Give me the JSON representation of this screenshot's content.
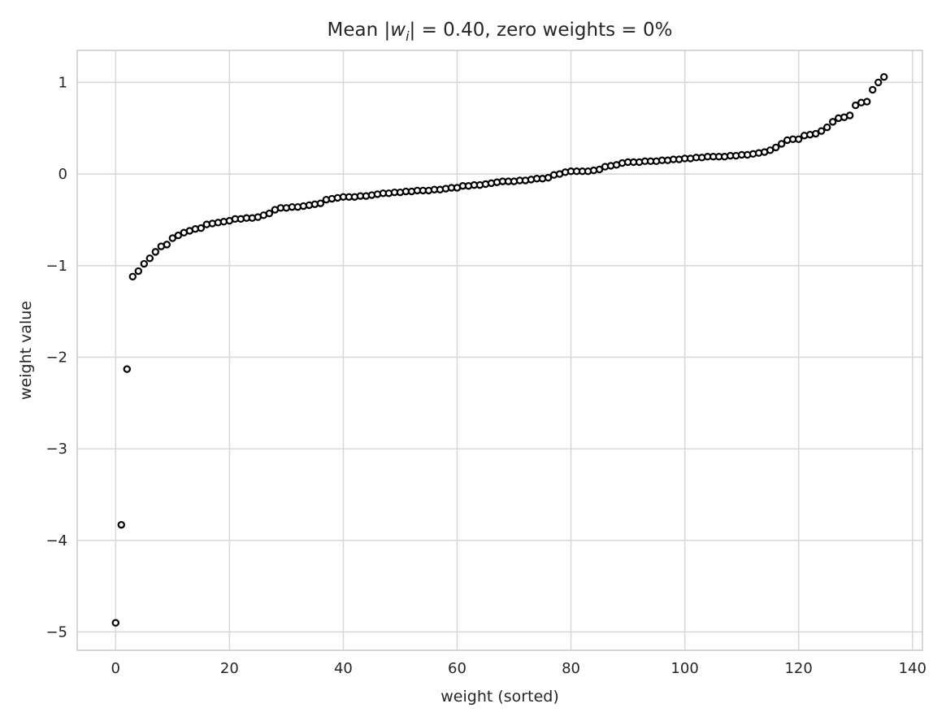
{
  "chart_data": {
    "type": "scatter",
    "title_parts": {
      "prefix": "Mean |",
      "var": "w",
      "sub": "i",
      "suffix": "| = 0.40, zero weights = 0%"
    },
    "xlabel": "weight (sorted)",
    "ylabel": "weight value",
    "xlim": [
      -6.75,
      141.75
    ],
    "ylim": [
      -5.2,
      1.35
    ],
    "x_ticks": [
      0,
      20,
      40,
      60,
      80,
      100,
      120,
      140
    ],
    "y_ticks": [
      -5,
      -4,
      -3,
      -2,
      -1,
      0,
      1
    ],
    "x_tick_labels": [
      "0",
      "20",
      "40",
      "60",
      "80",
      "100",
      "120",
      "140"
    ],
    "y_tick_labels": [
      "−5",
      "−4",
      "−3",
      "−2",
      "−1",
      "0",
      "1"
    ],
    "grid": true,
    "marker": "open-circle",
    "marker_edge_color": "#000000",
    "marker_face_color": "#ffffff",
    "series": [
      {
        "x": [
          0,
          1,
          2,
          3,
          4,
          5,
          6,
          7,
          8,
          9,
          10,
          11,
          12,
          13,
          14,
          15,
          16,
          17,
          18,
          19,
          20,
          21,
          22,
          23,
          24,
          25,
          26,
          27,
          28,
          29,
          30,
          31,
          32,
          33,
          34,
          35,
          36,
          37,
          38,
          39,
          40,
          41,
          42,
          43,
          44,
          45,
          46,
          47,
          48,
          49,
          50,
          51,
          52,
          53,
          54,
          55,
          56,
          57,
          58,
          59,
          60,
          61,
          62,
          63,
          64,
          65,
          66,
          67,
          68,
          69,
          70,
          71,
          72,
          73,
          74,
          75,
          76,
          77,
          78,
          79,
          80,
          81,
          82,
          83,
          84,
          85,
          86,
          87,
          88,
          89,
          90,
          91,
          92,
          93,
          94,
          95,
          96,
          97,
          98,
          99,
          100,
          101,
          102,
          103,
          104,
          105,
          106,
          107,
          108,
          109,
          110,
          111,
          112,
          113,
          114,
          115,
          116,
          117,
          118,
          119,
          120,
          121,
          122,
          123,
          124,
          125,
          126,
          127,
          128,
          129,
          130,
          131,
          132,
          133,
          134,
          135
        ],
        "y": [
          -4.9,
          -3.83,
          -2.13,
          -1.12,
          -1.06,
          -0.98,
          -0.92,
          -0.85,
          -0.79,
          -0.77,
          -0.7,
          -0.67,
          -0.64,
          -0.62,
          -0.6,
          -0.59,
          -0.55,
          -0.54,
          -0.53,
          -0.52,
          -0.51,
          -0.49,
          -0.49,
          -0.48,
          -0.48,
          -0.47,
          -0.45,
          -0.43,
          -0.39,
          -0.37,
          -0.37,
          -0.36,
          -0.36,
          -0.35,
          -0.34,
          -0.33,
          -0.32,
          -0.28,
          -0.27,
          -0.26,
          -0.25,
          -0.25,
          -0.25,
          -0.24,
          -0.24,
          -0.23,
          -0.22,
          -0.21,
          -0.21,
          -0.2,
          -0.2,
          -0.19,
          -0.19,
          -0.18,
          -0.18,
          -0.18,
          -0.17,
          -0.17,
          -0.16,
          -0.15,
          -0.15,
          -0.13,
          -0.13,
          -0.12,
          -0.12,
          -0.11,
          -0.1,
          -0.09,
          -0.08,
          -0.08,
          -0.08,
          -0.07,
          -0.07,
          -0.06,
          -0.05,
          -0.05,
          -0.04,
          -0.01,
          0.0,
          0.02,
          0.03,
          0.03,
          0.03,
          0.03,
          0.04,
          0.05,
          0.08,
          0.09,
          0.1,
          0.12,
          0.13,
          0.13,
          0.13,
          0.14,
          0.14,
          0.14,
          0.15,
          0.15,
          0.16,
          0.16,
          0.17,
          0.17,
          0.18,
          0.18,
          0.19,
          0.19,
          0.19,
          0.19,
          0.2,
          0.2,
          0.21,
          0.21,
          0.22,
          0.23,
          0.24,
          0.26,
          0.29,
          0.33,
          0.37,
          0.38,
          0.38,
          0.42,
          0.43,
          0.44,
          0.47,
          0.51,
          0.57,
          0.61,
          0.62,
          0.64,
          0.75,
          0.78,
          0.79,
          0.92,
          1.0,
          1.06
        ]
      }
    ]
  }
}
